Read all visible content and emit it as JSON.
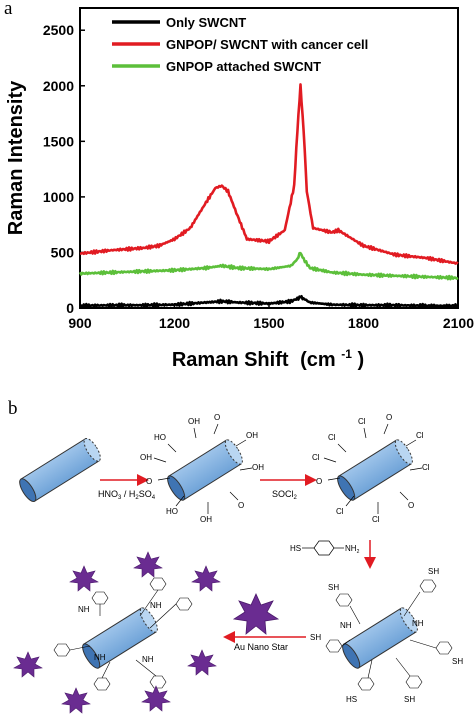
{
  "panels": {
    "a": "a",
    "b": "b"
  },
  "chart_data": {
    "type": "line",
    "title": "",
    "xlabel": "Raman Shift",
    "xlabel_unit": "(cm",
    "xlabel_unit_sup": "-1",
    "xlabel_unit_end": ")",
    "ylabel": "Raman Intensity",
    "xlim": [
      900,
      2100
    ],
    "ylim": [
      0,
      2700
    ],
    "xticks": [
      "900",
      "1200",
      "1500",
      "1800",
      "2100"
    ],
    "yticks": [
      "0",
      "500",
      "1000",
      "1500",
      "2000",
      "2500"
    ],
    "legend_position": "top",
    "series": [
      {
        "name": "Only SWCNT",
        "color": "#000000",
        "x": [
          900,
          1000,
          1100,
          1200,
          1300,
          1350,
          1400,
          1500,
          1570,
          1590,
          1600,
          1610,
          1630,
          1700,
          1800,
          1900,
          2000,
          2100
        ],
        "y": [
          20,
          25,
          25,
          30,
          50,
          60,
          50,
          40,
          60,
          85,
          100,
          85,
          50,
          30,
          25,
          25,
          20,
          20
        ]
      },
      {
        "name": "GNPOP/ SWCNT with cancer cell",
        "color": "#e11b22",
        "x": [
          900,
          1000,
          1100,
          1150,
          1200,
          1250,
          1300,
          1330,
          1350,
          1370,
          1400,
          1430,
          1500,
          1550,
          1580,
          1590,
          1600,
          1610,
          1620,
          1640,
          1700,
          1720,
          1800,
          1900,
          2000,
          2100
        ],
        "y": [
          490,
          520,
          540,
          560,
          620,
          720,
          950,
          1080,
          1100,
          1050,
          830,
          620,
          600,
          700,
          1100,
          1600,
          2000,
          1600,
          1050,
          720,
          680,
          700,
          560,
          480,
          450,
          400
        ]
      },
      {
        "name": "GNPOP attached SWCNT",
        "color": "#5cbf3a",
        "x": [
          900,
          1000,
          1100,
          1200,
          1300,
          1350,
          1400,
          1500,
          1570,
          1590,
          1600,
          1610,
          1630,
          1700,
          1800,
          1900,
          2000,
          2100
        ],
        "y": [
          310,
          320,
          330,
          340,
          360,
          380,
          360,
          350,
          380,
          440,
          500,
          440,
          360,
          320,
          300,
          290,
          280,
          270
        ]
      }
    ]
  },
  "scheme": {
    "step1_label": "HNO",
    "step1_sub1": "3",
    "step1_mid": " / H",
    "step1_sub2": "2",
    "step1_mid2": "SO",
    "step1_sub3": "4",
    "step2_label": "SOCl",
    "step2_sub": "2",
    "step3_reagent_left": "HS",
    "step3_reagent_right": "NH",
    "step3_reagent_sub": "2",
    "step4_label": "Au Nano Star",
    "groups": {
      "oh": "OH",
      "ho": "HO",
      "o": "O",
      "cl": "Cl",
      "c": "C",
      "nh": "NH",
      "sh": "SH",
      "hs": "HS",
      "s": "S"
    }
  }
}
